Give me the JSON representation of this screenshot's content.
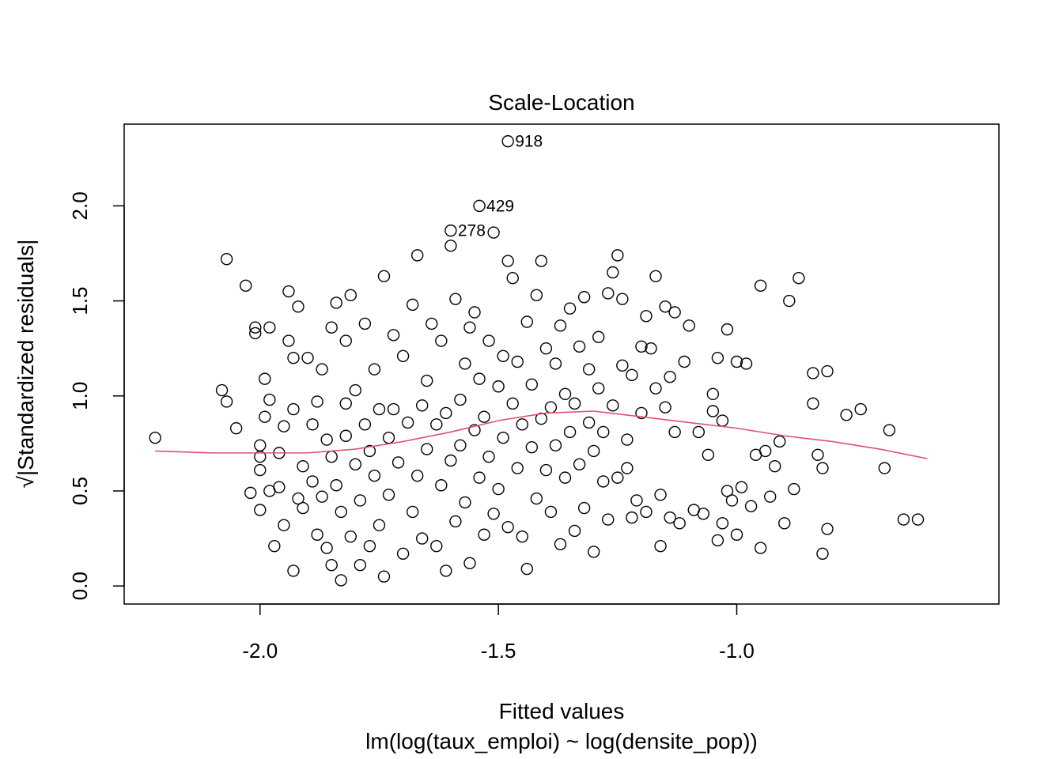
{
  "chart_data": {
    "type": "scatter",
    "title": "Scale-Location",
    "xlabel": "Fitted values",
    "ylabel": "√|Standardized residuals|",
    "subtitle": "lm(log(taux_emploi) ~ log(densite_pop))",
    "xlim": [
      -2.285,
      -0.45
    ],
    "ylim": [
      -0.095,
      2.43
    ],
    "x_ticks": [
      -2.0,
      -1.5,
      -1.0
    ],
    "x_tick_labels": [
      "-2.0",
      "-1.5",
      "-1.0"
    ],
    "y_ticks": [
      0.0,
      0.5,
      1.0,
      1.5,
      2.0
    ],
    "y_tick_labels": [
      "0.0",
      "0.5",
      "1.0",
      "1.5",
      "2.0"
    ],
    "labeled_points": [
      {
        "label": "918",
        "x": -1.48,
        "y": 2.34
      },
      {
        "label": "429",
        "x": -1.54,
        "y": 2.0
      },
      {
        "label": "278",
        "x": -1.6,
        "y": 1.87
      }
    ],
    "points": [
      [
        -2.22,
        0.78
      ],
      [
        -2.08,
        1.03
      ],
      [
        -2.07,
        1.72
      ],
      [
        -2.07,
        0.97
      ],
      [
        -2.05,
        0.83
      ],
      [
        -2.03,
        1.58
      ],
      [
        -2.02,
        0.49
      ],
      [
        -2.01,
        1.36
      ],
      [
        -2.01,
        1.33
      ],
      [
        -2.0,
        0.4
      ],
      [
        -2.0,
        0.61
      ],
      [
        -2.0,
        0.74
      ],
      [
        -2.0,
        0.68
      ],
      [
        -1.99,
        0.89
      ],
      [
        -1.99,
        1.09
      ],
      [
        -1.98,
        0.98
      ],
      [
        -1.98,
        1.36
      ],
      [
        -1.98,
        0.5
      ],
      [
        -1.97,
        0.21
      ],
      [
        -1.96,
        0.7
      ],
      [
        -1.96,
        0.52
      ],
      [
        -1.95,
        0.32
      ],
      [
        -1.95,
        0.84
      ],
      [
        -1.94,
        1.55
      ],
      [
        -1.94,
        1.29
      ],
      [
        -1.93,
        0.93
      ],
      [
        -1.93,
        1.2
      ],
      [
        -1.93,
        0.08
      ],
      [
        -1.92,
        0.46
      ],
      [
        -1.92,
        1.47
      ],
      [
        -1.91,
        0.63
      ],
      [
        -1.91,
        0.41
      ],
      [
        -1.9,
        1.2
      ],
      [
        -1.89,
        0.85
      ],
      [
        -1.89,
        0.55
      ],
      [
        -1.88,
        0.27
      ],
      [
        -1.88,
        0.97
      ],
      [
        -1.87,
        1.14
      ],
      [
        -1.87,
        0.47
      ],
      [
        -1.86,
        0.77
      ],
      [
        -1.86,
        0.2
      ],
      [
        -1.85,
        1.36
      ],
      [
        -1.85,
        0.11
      ],
      [
        -1.85,
        0.68
      ],
      [
        -1.84,
        1.49
      ],
      [
        -1.84,
        0.53
      ],
      [
        -1.83,
        0.03
      ],
      [
        -1.83,
        0.39
      ],
      [
        -1.82,
        0.96
      ],
      [
        -1.82,
        0.79
      ],
      [
        -1.82,
        1.29
      ],
      [
        -1.81,
        1.53
      ],
      [
        -1.81,
        0.26
      ],
      [
        -1.8,
        0.64
      ],
      [
        -1.8,
        1.03
      ],
      [
        -1.79,
        0.45
      ],
      [
        -1.79,
        0.11
      ],
      [
        -1.78,
        1.38
      ],
      [
        -1.78,
        0.85
      ],
      [
        -1.77,
        0.71
      ],
      [
        -1.77,
        0.21
      ],
      [
        -1.76,
        0.58
      ],
      [
        -1.76,
        1.14
      ],
      [
        -1.75,
        0.93
      ],
      [
        -1.75,
        0.32
      ],
      [
        -1.74,
        1.63
      ],
      [
        -1.74,
        0.05
      ],
      [
        -1.73,
        0.78
      ],
      [
        -1.73,
        0.48
      ],
      [
        -1.72,
        1.32
      ],
      [
        -1.72,
        0.93
      ],
      [
        -1.71,
        0.65
      ],
      [
        -1.7,
        0.17
      ],
      [
        -1.7,
        1.21
      ],
      [
        -1.69,
        0.86
      ],
      [
        -1.68,
        1.48
      ],
      [
        -1.68,
        0.39
      ],
      [
        -1.67,
        1.74
      ],
      [
        -1.67,
        0.58
      ],
      [
        -1.66,
        0.95
      ],
      [
        -1.66,
        0.25
      ],
      [
        -1.65,
        1.08
      ],
      [
        -1.65,
        0.72
      ],
      [
        -1.64,
        1.38
      ],
      [
        -1.63,
        0.21
      ],
      [
        -1.63,
        0.85
      ],
      [
        -1.62,
        1.29
      ],
      [
        -1.62,
        0.53
      ],
      [
        -1.61,
        0.08
      ],
      [
        -1.61,
        0.91
      ],
      [
        -1.6,
        1.79
      ],
      [
        -1.6,
        0.66
      ],
      [
        -1.59,
        1.51
      ],
      [
        -1.59,
        0.34
      ],
      [
        -1.58,
        0.98
      ],
      [
        -1.58,
        0.74
      ],
      [
        -1.57,
        1.17
      ],
      [
        -1.57,
        0.44
      ],
      [
        -1.56,
        1.36
      ],
      [
        -1.56,
        0.12
      ],
      [
        -1.55,
        0.82
      ],
      [
        -1.55,
        1.44
      ],
      [
        -1.54,
        0.57
      ],
      [
        -1.54,
        1.09
      ],
      [
        -1.53,
        0.27
      ],
      [
        -1.53,
        0.89
      ],
      [
        -1.52,
        1.29
      ],
      [
        -1.52,
        0.68
      ],
      [
        -1.51,
        1.86
      ],
      [
        -1.51,
        0.38
      ],
      [
        -1.5,
        1.05
      ],
      [
        -1.5,
        0.51
      ],
      [
        -1.49,
        1.21
      ],
      [
        -1.49,
        0.78
      ],
      [
        -1.48,
        1.71
      ],
      [
        -1.48,
        0.31
      ],
      [
        -1.47,
        0.96
      ],
      [
        -1.47,
        1.62
      ],
      [
        -1.46,
        0.62
      ],
      [
        -1.46,
        1.18
      ],
      [
        -1.45,
        0.26
      ],
      [
        -1.45,
        0.85
      ],
      [
        -1.44,
        1.39
      ],
      [
        -1.44,
        0.09
      ],
      [
        -1.43,
        0.73
      ],
      [
        -1.43,
        1.06
      ],
      [
        -1.42,
        0.46
      ],
      [
        -1.42,
        1.53
      ],
      [
        -1.41,
        0.88
      ],
      [
        -1.41,
        1.71
      ],
      [
        -1.4,
        0.61
      ],
      [
        -1.4,
        1.25
      ],
      [
        -1.39,
        0.39
      ],
      [
        -1.39,
        0.94
      ],
      [
        -1.38,
        0.74
      ],
      [
        -1.38,
        1.17
      ],
      [
        -1.37,
        0.22
      ],
      [
        -1.37,
        1.37
      ],
      [
        -1.36,
        0.57
      ],
      [
        -1.36,
        1.01
      ],
      [
        -1.35,
        0.81
      ],
      [
        -1.35,
        1.46
      ],
      [
        -1.34,
        0.29
      ],
      [
        -1.34,
        0.96
      ],
      [
        -1.33,
        0.64
      ],
      [
        -1.33,
        1.26
      ],
      [
        -1.32,
        1.52
      ],
      [
        -1.32,
        0.41
      ],
      [
        -1.31,
        0.86
      ],
      [
        -1.31,
        1.14
      ],
      [
        -1.3,
        0.18
      ],
      [
        -1.3,
        0.71
      ],
      [
        -1.29,
        1.31
      ],
      [
        -1.29,
        1.04
      ],
      [
        -1.28,
        0.55
      ],
      [
        -1.28,
        0.81
      ],
      [
        -1.27,
        1.54
      ],
      [
        -1.27,
        0.35
      ],
      [
        -1.26,
        1.65
      ],
      [
        -1.26,
        0.95
      ],
      [
        -1.25,
        1.74
      ],
      [
        -1.25,
        0.57
      ],
      [
        -1.24,
        1.16
      ],
      [
        -1.24,
        1.51
      ],
      [
        -1.23,
        0.77
      ],
      [
        -1.23,
        0.62
      ],
      [
        -1.22,
        1.11
      ],
      [
        -1.22,
        0.36
      ],
      [
        -1.21,
        0.45
      ],
      [
        -1.2,
        1.26
      ],
      [
        -1.2,
        0.91
      ],
      [
        -1.19,
        1.42
      ],
      [
        -1.19,
        0.39
      ],
      [
        -1.18,
        1.25
      ],
      [
        -1.17,
        1.63
      ],
      [
        -1.17,
        1.04
      ],
      [
        -1.16,
        0.48
      ],
      [
        -1.16,
        0.21
      ],
      [
        -1.15,
        1.47
      ],
      [
        -1.15,
        0.94
      ],
      [
        -1.14,
        1.1
      ],
      [
        -1.14,
        0.36
      ],
      [
        -1.13,
        1.44
      ],
      [
        -1.13,
        0.81
      ],
      [
        -1.12,
        0.33
      ],
      [
        -1.11,
        1.18
      ],
      [
        -1.1,
        1.37
      ],
      [
        -1.09,
        0.4
      ],
      [
        -1.08,
        0.81
      ],
      [
        -1.07,
        0.38
      ],
      [
        -1.06,
        0.69
      ],
      [
        -1.05,
        0.92
      ],
      [
        -1.05,
        1.01
      ],
      [
        -1.04,
        1.2
      ],
      [
        -1.04,
        0.24
      ],
      [
        -1.03,
        0.87
      ],
      [
        -1.03,
        0.33
      ],
      [
        -1.02,
        1.35
      ],
      [
        -1.02,
        0.5
      ],
      [
        -1.01,
        0.45
      ],
      [
        -1.0,
        1.18
      ],
      [
        -1.0,
        0.27
      ],
      [
        -0.99,
        0.52
      ],
      [
        -0.98,
        1.17
      ],
      [
        -0.97,
        0.42
      ],
      [
        -0.96,
        0.69
      ],
      [
        -0.95,
        1.58
      ],
      [
        -0.95,
        0.2
      ],
      [
        -0.94,
        0.71
      ],
      [
        -0.93,
        0.47
      ],
      [
        -0.92,
        0.63
      ],
      [
        -0.91,
        0.76
      ],
      [
        -0.9,
        0.33
      ],
      [
        -0.89,
        1.5
      ],
      [
        -0.88,
        0.51
      ],
      [
        -0.87,
        1.62
      ],
      [
        -0.84,
        0.96
      ],
      [
        -0.84,
        1.12
      ],
      [
        -0.83,
        0.69
      ],
      [
        -0.82,
        0.17
      ],
      [
        -0.82,
        0.62
      ],
      [
        -0.81,
        0.3
      ],
      [
        -0.81,
        1.13
      ],
      [
        -0.77,
        0.9
      ],
      [
        -0.74,
        0.93
      ],
      [
        -0.69,
        0.62
      ],
      [
        -0.68,
        0.82
      ],
      [
        -0.65,
        0.35
      ],
      [
        -0.62,
        0.35
      ]
    ],
    "smooth_line": {
      "color": "#df536b",
      "x": [
        -2.22,
        -2.1,
        -2.0,
        -1.9,
        -1.8,
        -1.7,
        -1.6,
        -1.5,
        -1.4,
        -1.3,
        -1.2,
        -1.1,
        -1.0,
        -0.9,
        -0.8,
        -0.7,
        -0.6
      ],
      "y": [
        0.71,
        0.7,
        0.7,
        0.7,
        0.72,
        0.76,
        0.81,
        0.87,
        0.91,
        0.92,
        0.89,
        0.86,
        0.83,
        0.79,
        0.76,
        0.72,
        0.67
      ]
    },
    "point_style": "open circle",
    "point_color": "#000000",
    "grid": false,
    "legend": "none"
  }
}
